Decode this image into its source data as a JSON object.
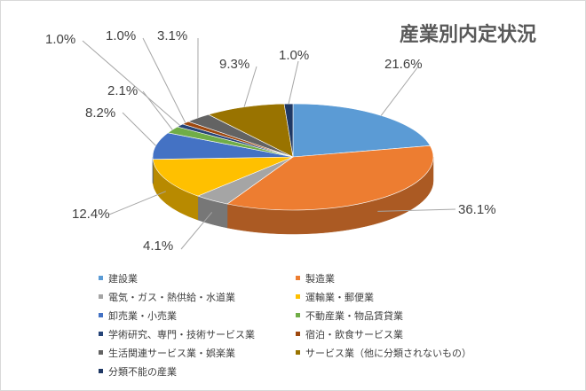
{
  "chart_data": {
    "type": "pie",
    "title": "産業別内定状況",
    "legend_position": "bottom",
    "categories": [
      "建設業",
      "製造業",
      "電気・ガス・熱供給・水道業",
      "運輸業・郵便業",
      "卸売業・小売業",
      "不動産業・物品賃貸業",
      "学術研究、専門・技術サービス業",
      "宿泊・飲食サービス業",
      "生活関連サービス業・娯楽業",
      "サービス業（他に分類されないもの）",
      "分類不能の産業"
    ],
    "values": [
      21.6,
      36.1,
      4.1,
      12.4,
      8.2,
      2.1,
      1.0,
      1.0,
      3.1,
      9.3,
      1.0
    ],
    "data_labels": [
      "21.6%",
      "36.1%",
      "4.1%",
      "12.4%",
      "8.2%",
      "2.1%",
      "1.0%",
      "1.0%",
      "3.1%",
      "9.3%",
      "1.0%"
    ],
    "colors": [
      "#5B9BD5",
      "#ED7D31",
      "#A5A5A5",
      "#FFC000",
      "#4472C4",
      "#70AD47",
      "#264478",
      "#9E480E",
      "#636363",
      "#997300",
      "#1F3864"
    ]
  }
}
